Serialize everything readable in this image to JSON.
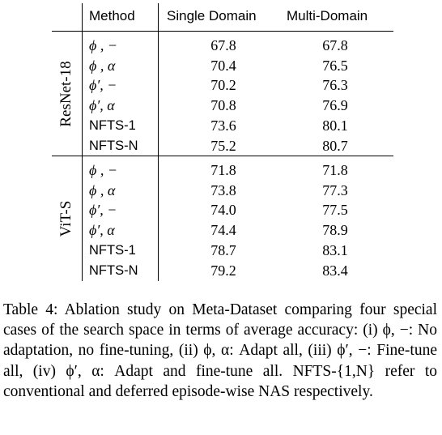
{
  "table": {
    "headers": {
      "method": "Method",
      "single": "Single Domain",
      "multi": "Multi-Domain"
    },
    "groups": [
      {
        "label": "ResNet-18",
        "rows": [
          {
            "method": "ϕ , −",
            "math": true,
            "single": "67.8",
            "multi": "67.8"
          },
          {
            "method": "ϕ , α",
            "math": true,
            "single": "70.4",
            "multi": "76.5"
          },
          {
            "method": "ϕ′, −",
            "math": true,
            "single": "70.2",
            "multi": "76.3"
          },
          {
            "method": "ϕ′, α",
            "math": true,
            "single": "70.8",
            "multi": "76.9"
          },
          {
            "method": "NFTS-1",
            "math": false,
            "single": "73.6",
            "multi": "80.1"
          },
          {
            "method": "NFTS-N",
            "math": false,
            "single": "75.2",
            "multi": "80.7"
          }
        ]
      },
      {
        "label": "ViT-S",
        "rows": [
          {
            "method": "ϕ , −",
            "math": true,
            "single": "71.8",
            "multi": "71.8"
          },
          {
            "method": "ϕ , α",
            "math": true,
            "single": "73.8",
            "multi": "77.3"
          },
          {
            "method": "ϕ′, −",
            "math": true,
            "single": "74.0",
            "multi": "77.5"
          },
          {
            "method": "ϕ′, α",
            "math": true,
            "single": "74.4",
            "multi": "78.9"
          },
          {
            "method": "NFTS-1",
            "math": false,
            "single": "78.7",
            "multi": "83.1"
          },
          {
            "method": "NFTS-N",
            "math": false,
            "single": "79.2",
            "multi": "83.4"
          }
        ]
      }
    ]
  },
  "caption": "Table 4: Ablation study on Meta-Dataset comparing four special cases of the search space in terms of average accuracy: (i) ϕ, −: No adaptation, no fine-tuning, (ii) ϕ, α: Adapt all, (iii) ϕ′, −: Fine-tune all, (iv) ϕ′, α: Adapt and fine-tune all. NFTS-{1,N} refer to conventional and deferred episode-wise NAS respectively."
}
